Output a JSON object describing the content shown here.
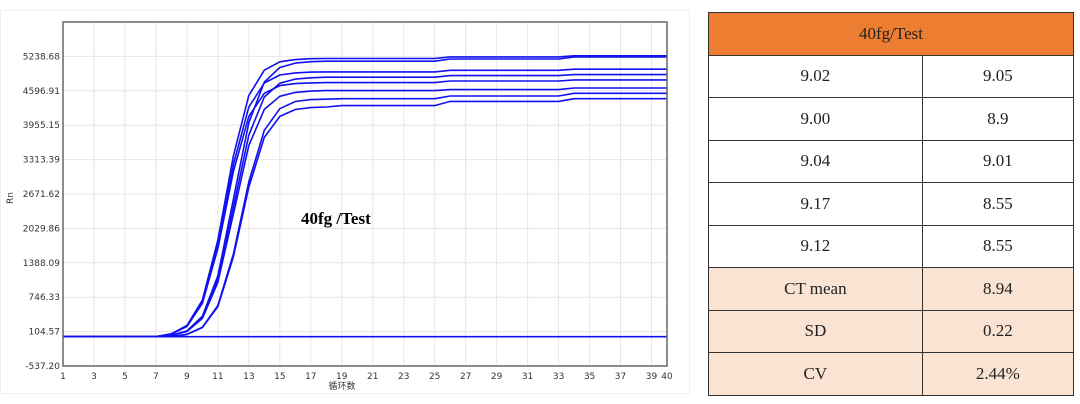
{
  "chart_data": {
    "type": "line",
    "title": "",
    "annotation": "40fg /Test",
    "xlabel": "循环数",
    "ylabel": "Rn",
    "xlim": [
      1,
      40
    ],
    "ylim": [
      -537.2,
      5880.45
    ],
    "x_ticks": [
      "1",
      "3",
      "5",
      "7",
      "9",
      "11",
      "13",
      "15",
      "17",
      "19",
      "21",
      "23",
      "25",
      "27",
      "29",
      "31",
      "33",
      "35",
      "37",
      "39",
      "40"
    ],
    "x_tick_values": [
      1,
      3,
      5,
      7,
      9,
      11,
      13,
      15,
      17,
      19,
      21,
      23,
      25,
      27,
      29,
      31,
      33,
      35,
      37,
      39,
      40
    ],
    "y_ticks": [
      "-537.20",
      "104.57",
      "746.33",
      "1388.09",
      "2029.86",
      "2671.62",
      "3313.39",
      "3955.15",
      "4596.91",
      "5238.68"
    ],
    "y_tick_values": [
      -537.2,
      104.57,
      746.33,
      1388.09,
      2029.86,
      2671.62,
      3313.39,
      3955.15,
      4596.91,
      5238.68
    ],
    "grid": true,
    "line_color": "#1010F0",
    "x": [
      1,
      2,
      3,
      4,
      5,
      6,
      7,
      8,
      9,
      10,
      11,
      12,
      13,
      14,
      15,
      16,
      17,
      18,
      19,
      20,
      21,
      22,
      23,
      24,
      25,
      26,
      27,
      28,
      29,
      30,
      31,
      32,
      33,
      34,
      35,
      36,
      37,
      38,
      39,
      40
    ],
    "series": [
      {
        "values": [
          10,
          10,
          10,
          10,
          10,
          10,
          10,
          64,
          218,
          692,
          1815,
          3385,
          4508,
          4982,
          5138,
          5179,
          5195,
          5200,
          5200,
          5200,
          5200,
          5200,
          5200,
          5200,
          5200,
          5230,
          5230,
          5230,
          5230,
          5230,
          5230,
          5230,
          5230,
          5250,
          5250,
          5250,
          5250,
          5250,
          5250,
          5250
        ]
      },
      {
        "values": [
          10,
          10,
          10,
          10,
          10,
          10,
          10,
          59,
          200,
          632,
          1658,
          3092,
          4118,
          4551,
          4693,
          4731,
          4745,
          4750,
          4750,
          4750,
          4750,
          4750,
          4750,
          4750,
          4750,
          4780,
          4780,
          4780,
          4780,
          4780,
          4780,
          4780,
          4780,
          4800,
          4800,
          4800,
          4800,
          4800,
          4800,
          4800
        ]
      },
      {
        "values": [
          10,
          10,
          10,
          10,
          10,
          10,
          10,
          35,
          118,
          391,
          1148,
          2575,
          4002,
          4759,
          5032,
          5114,
          5140,
          5150,
          5150,
          5150,
          5150,
          5150,
          5150,
          5150,
          5150,
          5190,
          5190,
          5190,
          5190,
          5190,
          5190,
          5190,
          5190,
          5230,
          5230,
          5230,
          5230,
          5230,
          5230,
          5230
        ]
      },
      {
        "values": [
          10,
          10,
          10,
          10,
          10,
          10,
          10,
          32,
          112,
          369,
          1082,
          2425,
          3768,
          4481,
          4738,
          4816,
          4840,
          4850,
          4850,
          4850,
          4850,
          4850,
          4850,
          4850,
          4850,
          4880,
          4880,
          4880,
          4880,
          4880,
          4880,
          4880,
          4880,
          4900,
          4900,
          4900,
          4900,
          4900,
          4900,
          4900
        ]
      },
      {
        "values": [
          10,
          10,
          10,
          10,
          10,
          10,
          10,
          31,
          106,
          350,
          1026,
          2300,
          3574,
          4250,
          4494,
          4568,
          4591,
          4600,
          4600,
          4600,
          4600,
          4600,
          4600,
          4600,
          4600,
          4620,
          4620,
          4620,
          4620,
          4620,
          4620,
          4620,
          4620,
          4650,
          4650,
          4650,
          4650,
          4650,
          4650,
          4650
        ]
      },
      {
        "values": [
          10,
          10,
          10,
          10,
          10,
          10,
          10,
          10,
          55,
          187,
          592,
          1553,
          2897,
          3858,
          4263,
          4397,
          4432,
          4440,
          4450,
          4450,
          4450,
          4450,
          4450,
          4450,
          4450,
          4500,
          4500,
          4500,
          4500,
          4500,
          4500,
          4500,
          4500,
          4550,
          4550,
          4550,
          4550,
          4550,
          4550,
          4550
        ]
      },
      {
        "values": [
          10,
          10,
          10,
          10,
          10,
          10,
          10,
          10,
          53,
          181,
          572,
          1501,
          2799,
          3728,
          4119,
          4248,
          4283,
          4295,
          4320,
          4320,
          4320,
          4320,
          4320,
          4320,
          4320,
          4400,
          4400,
          4400,
          4400,
          4400,
          4400,
          4400,
          4400,
          4450,
          4450,
          4450,
          4450,
          4450,
          4450,
          4450
        ]
      },
      {
        "values": [
          10,
          10,
          10,
          10,
          10,
          10,
          10,
          61,
          208,
          658,
          1728,
          3222,
          4292,
          4742,
          4891,
          4931,
          4945,
          4950,
          4950,
          4950,
          4950,
          4950,
          4950,
          4950,
          4950,
          4980,
          4980,
          4980,
          4980,
          4980,
          4980,
          4980,
          4980,
          5000,
          5000,
          5000,
          5000,
          5000,
          5000,
          5000
        ]
      },
      {
        "values": [
          10,
          10,
          10,
          10,
          10,
          10,
          10,
          10,
          10,
          10,
          10,
          10,
          10,
          10,
          10,
          10,
          10,
          10,
          10,
          10,
          10,
          10,
          10,
          10,
          10,
          10,
          10,
          10,
          10,
          10,
          10,
          10,
          10,
          10,
          10,
          10,
          10,
          10,
          10,
          10
        ]
      }
    ]
  },
  "table": {
    "header": "40fg/Test",
    "header_color": "#ED7D31",
    "stat_color": "#FBE3D3",
    "rows": [
      [
        "9.02",
        "9.05"
      ],
      [
        "9.00",
        "8.9"
      ],
      [
        "9.04",
        "9.01"
      ],
      [
        "9.17",
        "8.55"
      ],
      [
        "9.12",
        "8.55"
      ]
    ],
    "stats": [
      [
        "CT mean",
        "8.94"
      ],
      [
        "SD",
        "0.22"
      ],
      [
        "CV",
        "2.44%"
      ]
    ]
  }
}
